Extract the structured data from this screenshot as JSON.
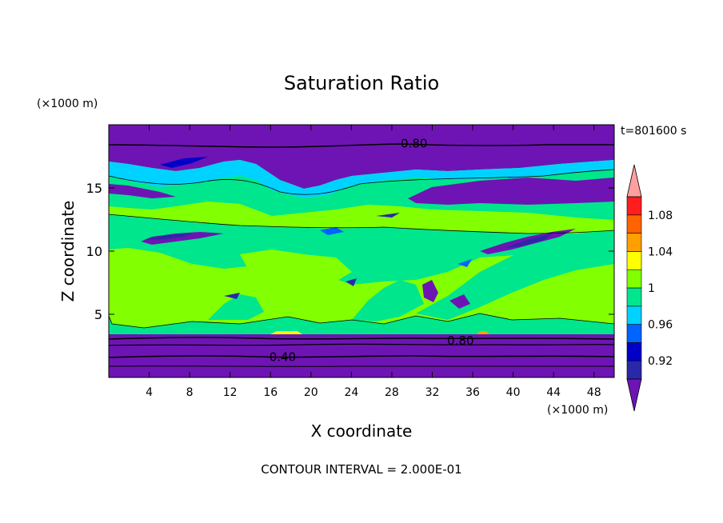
{
  "chart_data": {
    "type": "heatmap",
    "title": "Saturation Ratio",
    "time_label": "t=801600 s",
    "xlabel": "X coordinate",
    "ylabel": "Z coordinate",
    "x_unit": "(×1000 m)",
    "y_unit": "(×1000 m)",
    "xlim": [
      0,
      50
    ],
    "ylim": [
      0,
      20
    ],
    "x_ticks": [
      4,
      8,
      12,
      16,
      20,
      24,
      28,
      32,
      36,
      40,
      44,
      48
    ],
    "y_ticks": [
      5,
      10,
      15
    ],
    "footer": "CONTOUR INTERVAL = 2.000E-01",
    "colorbar": {
      "levels": [
        0.9,
        0.92,
        0.94,
        0.96,
        0.98,
        1.0,
        1.02,
        1.04,
        1.06,
        1.08,
        1.1
      ],
      "tick_labels": [
        {
          "value": 0.92,
          "label": "0.92"
        },
        {
          "value": 0.96,
          "label": "0.96"
        },
        {
          "value": 1.0,
          "label": "1"
        },
        {
          "value": 1.04,
          "label": "1.04"
        },
        {
          "value": 1.08,
          "label": "1.08"
        }
      ],
      "colors": [
        "#2828a8",
        "#0000c8",
        "#0064ff",
        "#00d2ff",
        "#00e68c",
        "#82ff00",
        "#ffff00",
        "#ffa000",
        "#ff6400",
        "#ff1e1e"
      ],
      "under_color": "#6e14b4",
      "over_color": "#ffa0a0"
    },
    "contour_labels": [
      {
        "label": "0.80",
        "x": 30.2,
        "z": 18.5
      },
      {
        "label": "0.80",
        "x": 34.8,
        "z": 2.9
      },
      {
        "label": "0.40",
        "x": 17.2,
        "z": 1.6
      }
    ]
  }
}
